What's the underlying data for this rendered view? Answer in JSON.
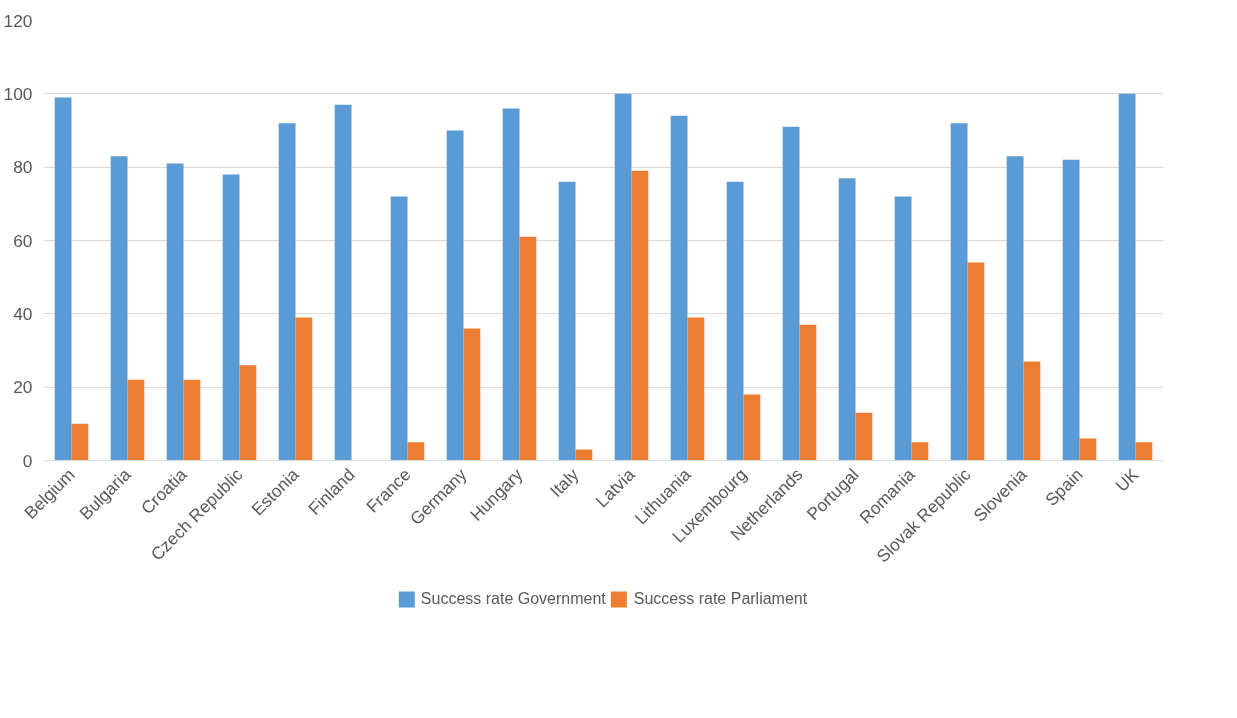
{
  "chart_data": {
    "type": "bar",
    "categories": [
      "Belgium",
      "Bulgaria",
      "Croatia",
      "Czech Republic",
      "Estonia",
      "Finland",
      "France",
      "Germany",
      "Hungary",
      "Italy",
      "Latvia",
      "Lithuania",
      "Luxembourg",
      "Netherlands",
      "Portugal",
      "Romania",
      "Slovak Republic",
      "Slovenia",
      "Spain",
      "UK"
    ],
    "series": [
      {
        "name": "Success rate Government",
        "color": "#5b9bd5",
        "values": [
          99,
          83,
          81,
          78,
          92,
          97,
          72,
          90,
          96,
          76,
          100,
          94,
          76,
          91,
          77,
          72,
          92,
          83,
          82,
          100
        ]
      },
      {
        "name": "Success rate Parliament",
        "color": "#ed7d31",
        "values": [
          10,
          22,
          22,
          26,
          39,
          null,
          5,
          36,
          61,
          3,
          79,
          39,
          18,
          37,
          13,
          5,
          54,
          27,
          6,
          5
        ]
      }
    ],
    "ylim": [
      0,
      120
    ],
    "yticks": [
      0,
      20,
      40,
      60,
      80,
      100,
      120
    ],
    "grid": "y",
    "legend": "bottom"
  }
}
